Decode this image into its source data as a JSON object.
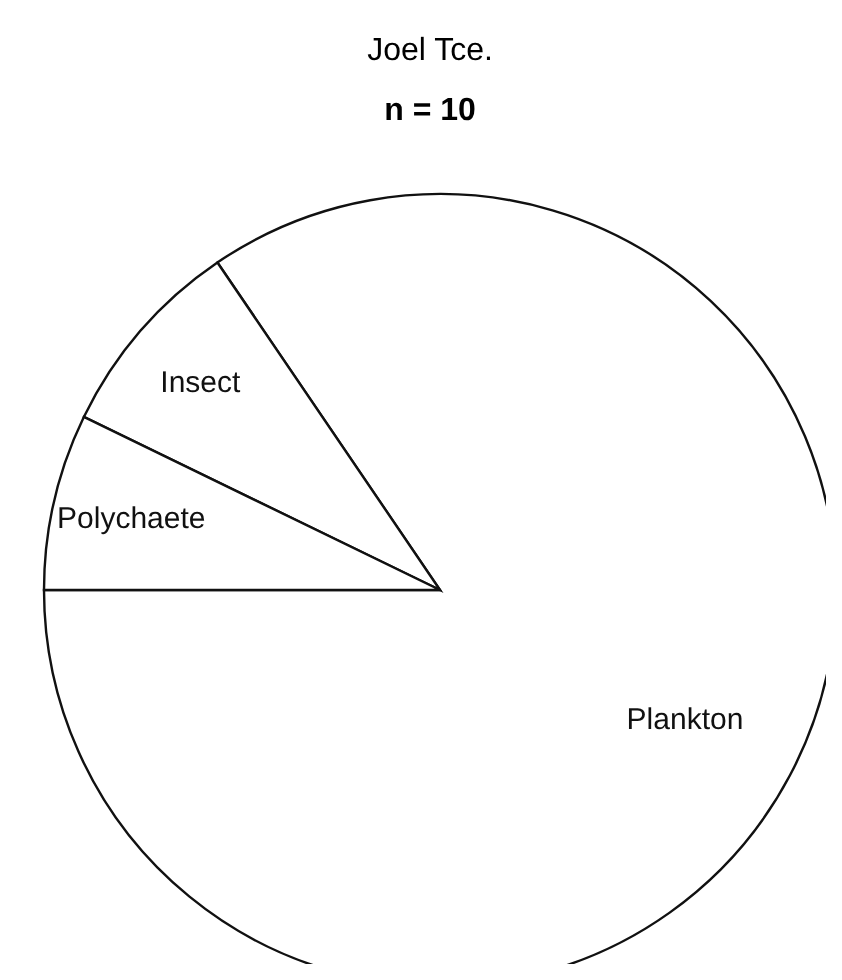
{
  "chart_data": {
    "type": "pie",
    "title": "Joel Tce.",
    "subtitle": "n = 10",
    "categories": [
      "Plankton",
      "Insect",
      "Polychaete"
    ],
    "values": [
      84.5,
      8.3,
      7.2
    ],
    "colors": [
      "#ffffff",
      "#ffffff",
      "#ffffff"
    ],
    "legend": false
  }
}
